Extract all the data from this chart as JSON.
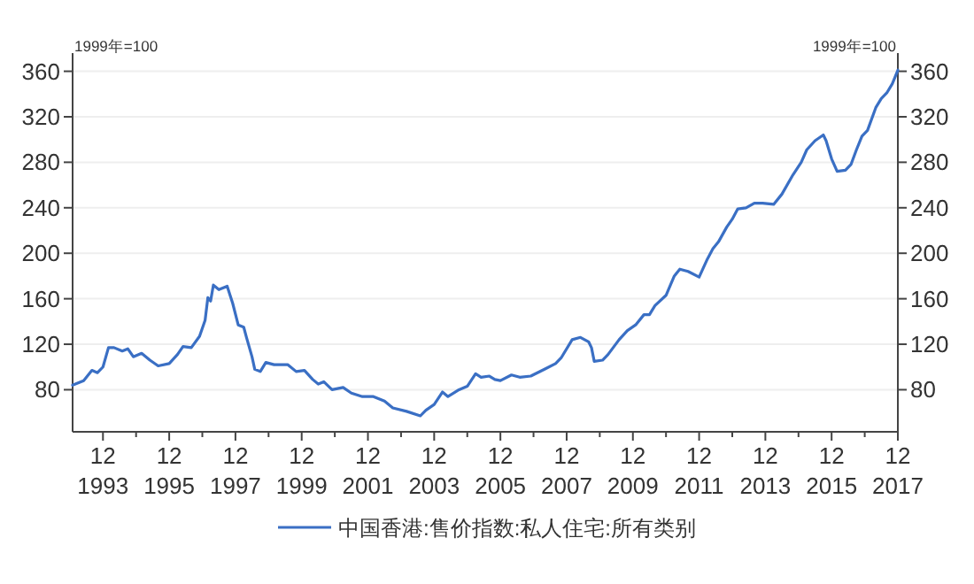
{
  "chart_data": {
    "type": "line",
    "ylabel": "1999年=100",
    "y2label": "1999年=100",
    "x": [
      "1993-01",
      "1993-05",
      "1993-08",
      "1993-10",
      "1993-12",
      "1994-02",
      "1994-04",
      "1994-07",
      "1994-09",
      "1994-11",
      "1995-02",
      "1995-05",
      "1995-08",
      "1995-12",
      "1996-03",
      "1996-05",
      "1996-08",
      "1996-11",
      "1997-01",
      "1997-02",
      "1997-03",
      "1997-04",
      "1997-06",
      "1997-09",
      "1997-11",
      "1998-01",
      "1998-03",
      "1998-04",
      "1998-06",
      "1998-07",
      "1998-09",
      "1998-11",
      "1999-02",
      "1999-07",
      "1999-10",
      "2000-01",
      "2000-04",
      "2000-06",
      "2000-08",
      "2000-11",
      "2001-03",
      "2001-06",
      "2001-10",
      "2002-02",
      "2002-06",
      "2002-09",
      "2003-02",
      "2003-07",
      "2003-09",
      "2003-12",
      "2004-03",
      "2004-05",
      "2004-09",
      "2004-12",
      "2005-03",
      "2005-05",
      "2005-08",
      "2005-10",
      "2005-12",
      "2006-04",
      "2006-07",
      "2006-11",
      "2007-04",
      "2007-08",
      "2007-10",
      "2008-02",
      "2008-05",
      "2008-08",
      "2008-09",
      "2008-10",
      "2009-01",
      "2009-03",
      "2009-07",
      "2009-10",
      "2010-01",
      "2010-04",
      "2010-06",
      "2010-08",
      "2010-12",
      "2011-03",
      "2011-05",
      "2011-08",
      "2011-12",
      "2012-03",
      "2012-05",
      "2012-07",
      "2012-10",
      "2012-12",
      "2013-02",
      "2013-05",
      "2013-08",
      "2013-11",
      "2014-03",
      "2014-06",
      "2014-10",
      "2015-01",
      "2015-03",
      "2015-06",
      "2015-09",
      "2015-10",
      "2015-12",
      "2016-02",
      "2016-05",
      "2016-07",
      "2016-09",
      "2016-11",
      "2017-01",
      "2017-04",
      "2017-06",
      "2017-08",
      "2017-10",
      "2017-12"
    ],
    "series": [
      {
        "name": "中国香港:售价指数:私人住宅:所有类别",
        "color": "#3a6fc4",
        "values": [
          84,
          88,
          97,
          95,
          100,
          117,
          117,
          114,
          116,
          109,
          112,
          106,
          101,
          103,
          111,
          118,
          117,
          127,
          141,
          161,
          158,
          172,
          168,
          171,
          156,
          137,
          135,
          126,
          109,
          98,
          96,
          104,
          102,
          102,
          96,
          97,
          89,
          85,
          87,
          80,
          82,
          77,
          74,
          74,
          70,
          64,
          61,
          57,
          62,
          67,
          78,
          74,
          80,
          83,
          94,
          91,
          92,
          89,
          88,
          93,
          91,
          92,
          98,
          103,
          108,
          124,
          126,
          122,
          117,
          105,
          106,
          111,
          124,
          132,
          137,
          146,
          146,
          154,
          163,
          180,
          186,
          184,
          179,
          195,
          204,
          210,
          223,
          230,
          239,
          240,
          244,
          244,
          243,
          252,
          269,
          280,
          291,
          299,
          304,
          299,
          283,
          272,
          273,
          278,
          291,
          303,
          308,
          328,
          336,
          341,
          349,
          361
        ]
      }
    ],
    "xlim": [
      "1993-01",
      "2017-12"
    ],
    "xticks": [
      {
        "value": "1993-12",
        "label": "12\n1993"
      },
      {
        "value": "1994-12",
        "label": null
      },
      {
        "value": "1995-12",
        "label": "12\n1995"
      },
      {
        "value": "1996-12",
        "label": null
      },
      {
        "value": "1997-12",
        "label": "12\n1997"
      },
      {
        "value": "1998-12",
        "label": null
      },
      {
        "value": "1999-12",
        "label": "12\n1999"
      },
      {
        "value": "2000-12",
        "label": null
      },
      {
        "value": "2001-12",
        "label": "12\n2001"
      },
      {
        "value": "2002-12",
        "label": null
      },
      {
        "value": "2003-12",
        "label": "12\n2003"
      },
      {
        "value": "2004-12",
        "label": null
      },
      {
        "value": "2005-12",
        "label": "12\n2005"
      },
      {
        "value": "2006-12",
        "label": null
      },
      {
        "value": "2007-12",
        "label": "12\n2007"
      },
      {
        "value": "2008-12",
        "label": null
      },
      {
        "value": "2009-12",
        "label": "12\n2009"
      },
      {
        "value": "2010-12",
        "label": null
      },
      {
        "value": "2011-12",
        "label": "12\n2011"
      },
      {
        "value": "2012-12",
        "label": null
      },
      {
        "value": "2013-12",
        "label": "12\n2013"
      },
      {
        "value": "2014-12",
        "label": null
      },
      {
        "value": "2015-12",
        "label": "12\n2015"
      },
      {
        "value": "2016-12",
        "label": null
      },
      {
        "value": "2017-12",
        "label": "12\n2017"
      }
    ],
    "ylim": [
      43,
      376
    ],
    "yticks": [
      80,
      120,
      160,
      200,
      240,
      280,
      320,
      360
    ],
    "y2lim": [
      43,
      376
    ],
    "y2ticks": [
      80,
      120,
      160,
      200,
      240,
      280,
      320,
      360
    ],
    "grid": "y",
    "legend": "bottom",
    "marker": "none",
    "line_style": "solid"
  }
}
